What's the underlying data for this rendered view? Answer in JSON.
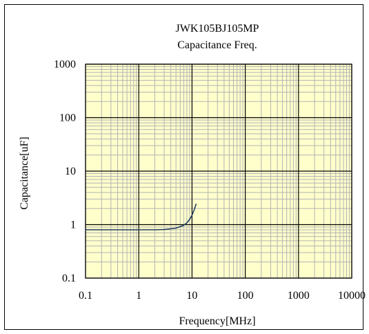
{
  "chart_data": {
    "type": "line",
    "title": "JWK105BJ105MP",
    "subtitle": "Capacitance Freq.",
    "xlabel": "Frequency[MHz]",
    "ylabel": "Capacitance[uF]",
    "xscale": "log",
    "yscale": "log",
    "xlim": [
      0.1,
      10000
    ],
    "ylim": [
      0.1,
      1000
    ],
    "x_ticks": [
      "0.1",
      "1",
      "10",
      "100",
      "1000",
      "10000"
    ],
    "y_ticks": [
      "0.1",
      "1",
      "10",
      "100",
      "1000"
    ],
    "grid": true,
    "series": [
      {
        "x": [
          0.1,
          0.3,
          1,
          2,
          3,
          5,
          7,
          8,
          9,
          10,
          11,
          12
        ],
        "y": [
          0.8,
          0.8,
          0.8,
          0.8,
          0.81,
          0.86,
          0.97,
          1.08,
          1.25,
          1.5,
          1.9,
          2.45
        ]
      }
    ],
    "colors": {
      "plot_bg": "#ffffcc",
      "grid_major": "#000000",
      "grid_minor": "#b3b3b3",
      "line": "#1f3f5f"
    }
  }
}
